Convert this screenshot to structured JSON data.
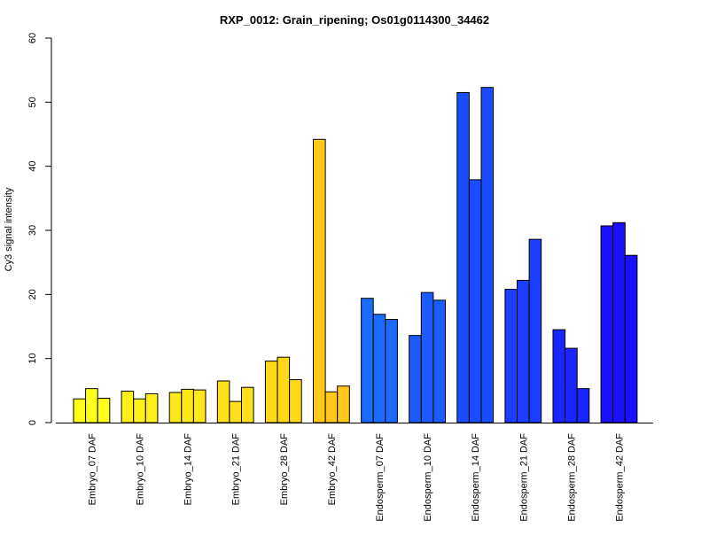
{
  "chart_data": {
    "type": "bar",
    "title": "RXP_0012: Grain_ripening; Os01g0114300_34462",
    "xlabel": "",
    "ylabel": "Cy3 signal intensity",
    "ylim": [
      0,
      60
    ],
    "yticks": [
      "0",
      "10",
      "20",
      "30",
      "40",
      "50",
      "60"
    ],
    "grid": false,
    "legend": "none",
    "categories": [
      "Embryo_07 DAF",
      "Embryo_10 DAF",
      "Embryo_14 DAF",
      "Embryo_21 DAF",
      "Embryo_28 DAF",
      "Embryo_42 DAF",
      "Endosperm_07 DAF",
      "Endosperm_10 DAF",
      "Endosperm_14 DAF",
      "Endosperm_21 DAF",
      "Endosperm_28 DAF",
      "Endosperm_42 DAF"
    ],
    "colors": [
      "#FFFF1A",
      "#FFF01A",
      "#FFE81A",
      "#FFE01A",
      "#FFD81A",
      "#FFC81A",
      "#1A6BFF",
      "#1A5CFF",
      "#1A4DFF",
      "#1A3DFF",
      "#1A26FF",
      "#1A0FFF"
    ],
    "replicates": [
      [
        3.7,
        5.3,
        3.8
      ],
      [
        4.9,
        3.7,
        4.5
      ],
      [
        4.7,
        5.2,
        5.1
      ],
      [
        6.5,
        3.3,
        5.5
      ],
      [
        9.6,
        10.2,
        6.7
      ],
      [
        44.2,
        4.8,
        5.7
      ],
      [
        19.4,
        16.9,
        16.1
      ],
      [
        13.6,
        20.3,
        19.1
      ],
      [
        51.5,
        37.9,
        52.3
      ],
      [
        20.8,
        22.2,
        28.6
      ],
      [
        14.5,
        11.6,
        5.3
      ],
      [
        30.7,
        31.2,
        26.1
      ]
    ]
  }
}
